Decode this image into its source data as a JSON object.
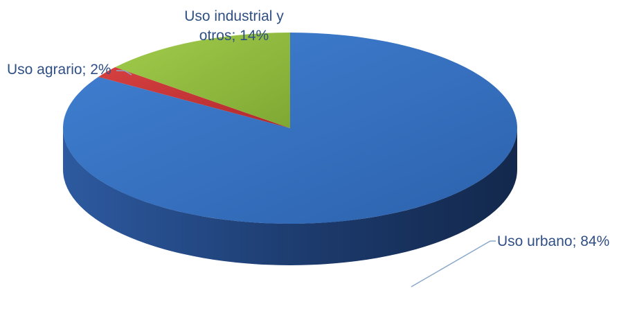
{
  "chart_data": {
    "type": "pie",
    "title": "",
    "slices": [
      {
        "category": "Uso urbano",
        "value": 84,
        "label": "Uso urbano; 84%",
        "color": "#3a76c8"
      },
      {
        "category": "Uso agrario",
        "value": 2,
        "label": "Uso agrario; 2%",
        "color": "#c8353a"
      },
      {
        "category": "Uso industrial y otros",
        "value": 14,
        "label_lines": [
          "Uso industrial y",
          "otros; 14%"
        ],
        "color": "#8db83c"
      }
    ],
    "label_color": "#2f4f85",
    "leader_line_color": "#8aa8c8"
  }
}
